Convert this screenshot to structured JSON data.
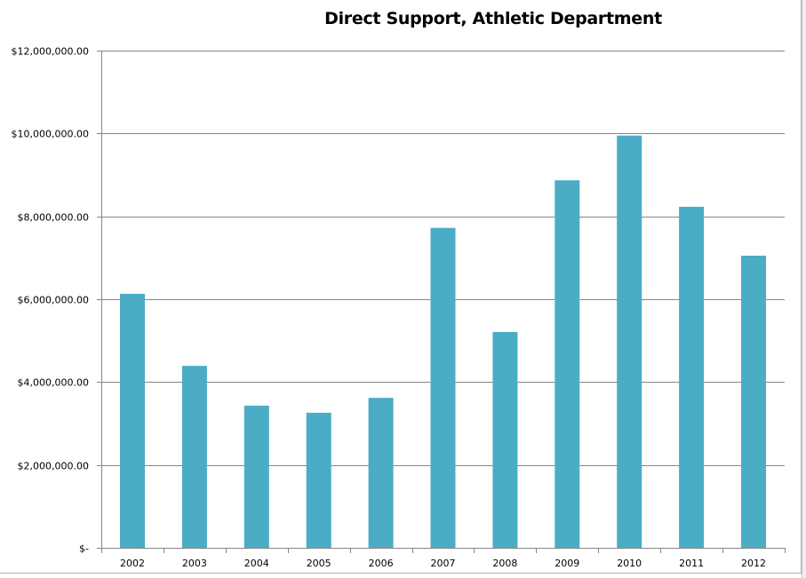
{
  "chart_data": {
    "type": "bar",
    "title": "Direct Support, Athletic Department",
    "xlabel": "",
    "ylabel": "",
    "categories": [
      "2002",
      "2003",
      "2004",
      "2005",
      "2006",
      "2007",
      "2008",
      "2009",
      "2010",
      "2011",
      "2012"
    ],
    "values": [
      6130000,
      4390000,
      3430000,
      3260000,
      3620000,
      7720000,
      5210000,
      8870000,
      9950000,
      8230000,
      7050000
    ],
    "ylim": [
      0,
      12000000
    ],
    "yticks": [
      0,
      2000000,
      4000000,
      6000000,
      8000000,
      10000000,
      12000000
    ],
    "ytick_labels": [
      "$-",
      "$2,000,000.00",
      "$4,000,000.00",
      "$6,000,000.00",
      "$8,000,000.00",
      "$10,000,000.00",
      "$12,000,000.00"
    ],
    "grid": true,
    "legend": "none",
    "colors": {
      "bar": "#4bacc6",
      "grid": "#868686",
      "axis": "#868686"
    }
  }
}
